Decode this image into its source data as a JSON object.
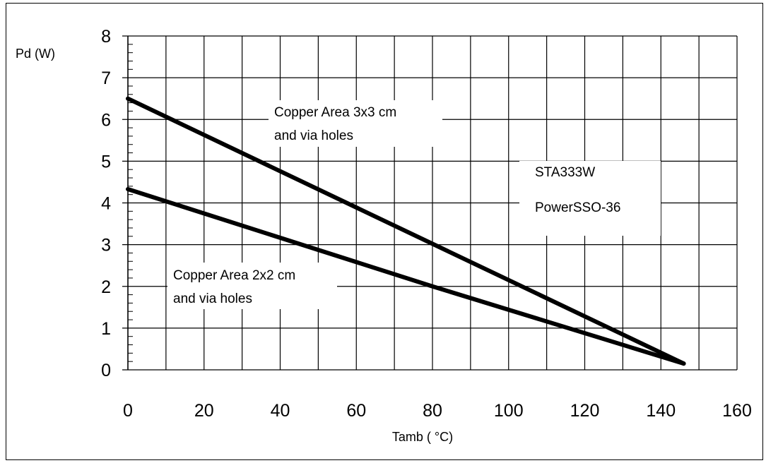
{
  "chart_data": {
    "type": "line",
    "title": "",
    "xlabel": "Tamb ( °C)",
    "ylabel": "Pd (W)",
    "xlim": [
      0,
      160
    ],
    "ylim": [
      0,
      8
    ],
    "xticks": [
      "0",
      "20",
      "40",
      "60",
      "80",
      "100",
      "120",
      "140",
      "160"
    ],
    "yticks": [
      "0",
      "1",
      "2",
      "3",
      "4",
      "5",
      "6",
      "7",
      "8"
    ],
    "grid": true,
    "series": [
      {
        "name": "Copper Area 3x3 cm and via holes",
        "x": [
          0,
          146
        ],
        "y": [
          6.5,
          0.15
        ]
      },
      {
        "name": "Copper Area 2x2 cm and via holes",
        "x": [
          0,
          80,
          146
        ],
        "y": [
          4.33,
          2.0,
          0.15
        ]
      }
    ],
    "annotations": [
      {
        "lines": [
          "Copper Area 3x3 cm",
          "and via holes"
        ]
      },
      {
        "lines": [
          "Copper Area 2x2 cm",
          "and via holes"
        ]
      },
      {
        "lines": [
          "STA333W",
          "PowerSSO-36"
        ]
      }
    ],
    "line_color": "#000000"
  }
}
